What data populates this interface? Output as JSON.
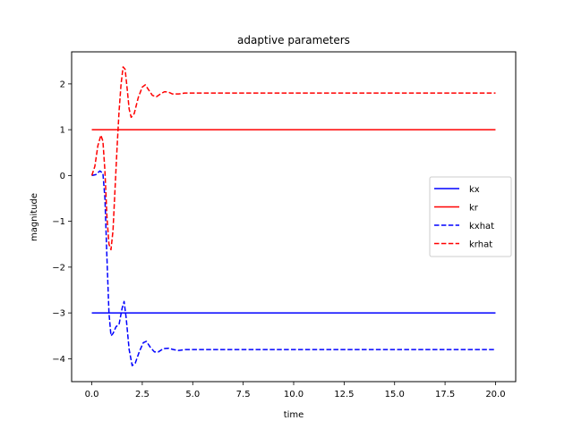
{
  "chart_data": {
    "type": "line",
    "title": "adaptive parameters",
    "xlabel": "time",
    "ylabel": "magnitude",
    "xlim": [
      -1.0,
      21.0
    ],
    "ylim": [
      -4.5,
      2.7
    ],
    "xticks": [
      0.0,
      2.5,
      5.0,
      7.5,
      10.0,
      12.5,
      15.0,
      17.5,
      20.0
    ],
    "xtick_labels": [
      "0.0",
      "2.5",
      "5.0",
      "7.5",
      "10.0",
      "12.5",
      "15.0",
      "17.5",
      "20.0"
    ],
    "yticks": [
      2,
      1,
      0,
      -1,
      -2,
      -3,
      -4
    ],
    "ytick_labels": [
      "2",
      "1",
      "0",
      "−1",
      "−2",
      "−3",
      "−4"
    ],
    "grid": false,
    "legend_position": "center-right",
    "series": [
      {
        "name": "kx",
        "color": "#0000ff",
        "style": "solid",
        "points": [
          [
            0,
            -3
          ],
          [
            20,
            -3
          ]
        ]
      },
      {
        "name": "kr",
        "color": "#ff0000",
        "style": "solid",
        "points": [
          [
            0,
            1
          ],
          [
            20,
            1
          ]
        ]
      },
      {
        "name": "kxhat",
        "color": "#0000ff",
        "style": "dashed",
        "points": [
          [
            0,
            0
          ],
          [
            0.2,
            0.02
          ],
          [
            0.4,
            0.1
          ],
          [
            0.55,
            0.05
          ],
          [
            0.65,
            -0.5
          ],
          [
            0.75,
            -1.8
          ],
          [
            0.85,
            -3.0
          ],
          [
            0.95,
            -3.5
          ],
          [
            1.05,
            -3.45
          ],
          [
            1.2,
            -3.3
          ],
          [
            1.35,
            -3.25
          ],
          [
            1.5,
            -2.9
          ],
          [
            1.6,
            -2.75
          ],
          [
            1.7,
            -3.1
          ],
          [
            1.85,
            -3.8
          ],
          [
            2.0,
            -4.15
          ],
          [
            2.15,
            -4.1
          ],
          [
            2.35,
            -3.85
          ],
          [
            2.55,
            -3.65
          ],
          [
            2.7,
            -3.62
          ],
          [
            2.9,
            -3.75
          ],
          [
            3.1,
            -3.85
          ],
          [
            3.3,
            -3.85
          ],
          [
            3.55,
            -3.78
          ],
          [
            3.8,
            -3.77
          ],
          [
            4.05,
            -3.8
          ],
          [
            4.3,
            -3.82
          ],
          [
            4.6,
            -3.8
          ],
          [
            5.0,
            -3.8
          ],
          [
            10.0,
            -3.8
          ],
          [
            15.0,
            -3.8
          ],
          [
            20.0,
            -3.8
          ]
        ]
      },
      {
        "name": "krhat",
        "color": "#ff0000",
        "style": "dashed",
        "points": [
          [
            0,
            0
          ],
          [
            0.15,
            0.2
          ],
          [
            0.3,
            0.65
          ],
          [
            0.45,
            0.88
          ],
          [
            0.55,
            0.75
          ],
          [
            0.65,
            0.1
          ],
          [
            0.75,
            -0.9
          ],
          [
            0.85,
            -1.5
          ],
          [
            0.95,
            -1.62
          ],
          [
            1.05,
            -1.2
          ],
          [
            1.15,
            -0.3
          ],
          [
            1.25,
            0.6
          ],
          [
            1.35,
            1.4
          ],
          [
            1.45,
            2.0
          ],
          [
            1.55,
            2.37
          ],
          [
            1.65,
            2.32
          ],
          [
            1.75,
            1.9
          ],
          [
            1.85,
            1.45
          ],
          [
            1.95,
            1.27
          ],
          [
            2.1,
            1.35
          ],
          [
            2.3,
            1.7
          ],
          [
            2.5,
            1.93
          ],
          [
            2.65,
            1.98
          ],
          [
            2.8,
            1.88
          ],
          [
            3.0,
            1.75
          ],
          [
            3.2,
            1.72
          ],
          [
            3.4,
            1.78
          ],
          [
            3.6,
            1.83
          ],
          [
            3.8,
            1.82
          ],
          [
            4.0,
            1.78
          ],
          [
            4.3,
            1.78
          ],
          [
            4.6,
            1.8
          ],
          [
            5.0,
            1.8
          ],
          [
            10.0,
            1.8
          ],
          [
            15.0,
            1.8
          ],
          [
            20.0,
            1.8
          ]
        ]
      }
    ]
  }
}
